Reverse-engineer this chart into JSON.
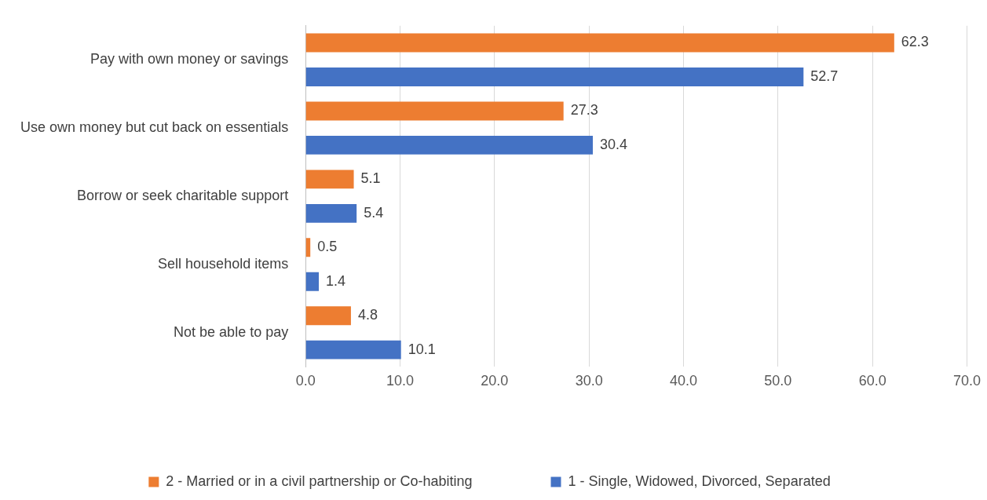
{
  "chart_data": {
    "type": "bar",
    "orientation": "horizontal",
    "categories": [
      "Pay with own money or savings",
      "Use own money but cut back on essentials",
      "Borrow or seek charitable support",
      "Sell household items",
      "Not be able to pay"
    ],
    "series": [
      {
        "name": "2 - Married or in a civil partnership or Co-habiting",
        "color": "#ed7d31",
        "values": [
          62.3,
          27.3,
          5.1,
          0.5,
          4.8
        ]
      },
      {
        "name": "1 - Single, Widowed, Divorced, Separated",
        "color": "#4472c4",
        "values": [
          52.7,
          30.4,
          5.4,
          1.4,
          10.1
        ]
      }
    ],
    "xlim": [
      0,
      70
    ],
    "xticks": [
      {
        "value": 0,
        "label": "0.0"
      },
      {
        "value": 10,
        "label": "10.0"
      },
      {
        "value": 20,
        "label": "20.0"
      },
      {
        "value": 30,
        "label": "30.0"
      },
      {
        "value": 40,
        "label": "40.0"
      },
      {
        "value": 50,
        "label": "50.0"
      },
      {
        "value": 60,
        "label": "60.0"
      },
      {
        "value": 70,
        "label": "70.0"
      }
    ],
    "grid": "x",
    "legend": "bottom",
    "data_labels": true
  }
}
